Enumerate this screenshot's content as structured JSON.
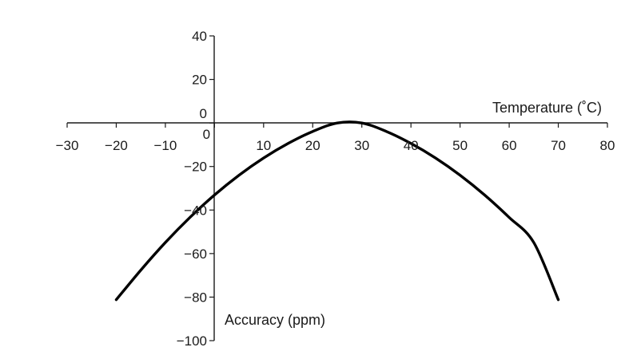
{
  "chart_data": {
    "type": "line",
    "title": "",
    "xlabel": "Temperature (˚C)",
    "ylabel": "Accuracy (ppm)",
    "xlim": [
      -30,
      80
    ],
    "ylim": [
      -100,
      40
    ],
    "x_ticks": [
      -30,
      -20,
      -10,
      0,
      10,
      20,
      30,
      40,
      50,
      60,
      70,
      80
    ],
    "x_tick_labels": [
      "−30",
      "−20",
      "−10",
      "0",
      "10",
      "20",
      "30",
      "40",
      "50",
      "60",
      "70",
      "80"
    ],
    "y_ticks": [
      40,
      20,
      0,
      -20,
      -40,
      -60,
      -80,
      -100
    ],
    "y_tick_labels": [
      "40",
      "20",
      "0",
      "−20",
      "−40",
      "−60",
      "−80",
      "−100"
    ],
    "grid": false,
    "legend": "none",
    "series": [
      {
        "color": "#000000",
        "x": [
          -20,
          -15,
          -10,
          -5,
          0,
          5,
          10,
          15,
          20,
          25,
          30,
          35,
          40,
          45,
          50,
          55,
          60,
          65,
          70
        ],
        "y": [
          -81.2,
          -67.6,
          -54.9,
          -43.4,
          -33.1,
          -24,
          -16.1,
          -9.4,
          -3.9,
          0,
          0,
          -3.9,
          -9.4,
          -16.1,
          -24,
          -33.1,
          -43.4,
          -54.9,
          -81.2
        ]
      }
    ]
  }
}
